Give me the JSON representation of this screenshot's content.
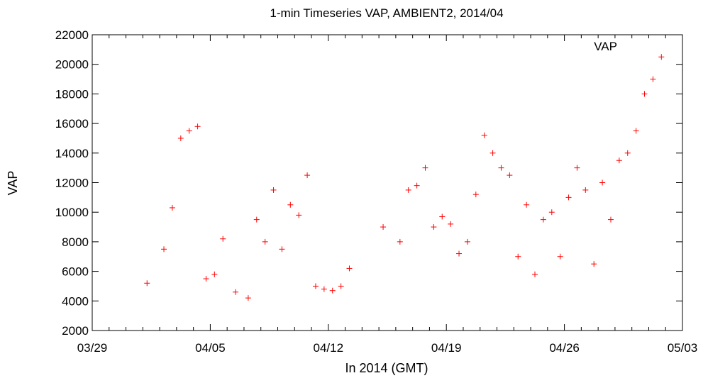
{
  "chart_data": {
    "type": "scatter",
    "title": "1-min Timeseries VAP, AMBIENT2, 2014/04",
    "xlabel": "In 2014 (GMT)",
    "ylabel": "VAP",
    "ylim": [
      2000,
      22000
    ],
    "xlim": [
      "2014-03-29",
      "2014-05-03"
    ],
    "x_ticks": [
      "03/29",
      "04/05",
      "04/12",
      "04/19",
      "04/26",
      "05/03"
    ],
    "y_ticks": [
      2000,
      4000,
      6000,
      8000,
      10000,
      12000,
      14000,
      16000,
      18000,
      20000,
      22000
    ],
    "grid": false,
    "legend_position": "top-right",
    "marker": "plus",
    "color": "#ff0000",
    "series": [
      {
        "name": "VAP",
        "x": [
          "2014-04-01 06:00",
          "2014-04-02 06:00",
          "2014-04-02 18:00",
          "2014-04-03 06:00",
          "2014-04-03 18:00",
          "2014-04-04 06:00",
          "2014-04-04 18:00",
          "2014-04-05 06:00",
          "2014-04-05 18:00",
          "2014-04-06 12:00",
          "2014-04-07 06:00",
          "2014-04-07 18:00",
          "2014-04-08 06:00",
          "2014-04-08 18:00",
          "2014-04-09 06:00",
          "2014-04-09 18:00",
          "2014-04-10 06:00",
          "2014-04-10 18:00",
          "2014-04-11 06:00",
          "2014-04-11 18:00",
          "2014-04-12 06:00",
          "2014-04-12 18:00",
          "2014-04-13 06:00",
          "2014-04-15 06:00",
          "2014-04-16 06:00",
          "2014-04-16 18:00",
          "2014-04-17 06:00",
          "2014-04-17 18:00",
          "2014-04-18 06:00",
          "2014-04-18 18:00",
          "2014-04-19 06:00",
          "2014-04-19 18:00",
          "2014-04-20 06:00",
          "2014-04-20 18:00",
          "2014-04-21 06:00",
          "2014-04-21 18:00",
          "2014-04-22 06:00",
          "2014-04-22 18:00",
          "2014-04-23 06:00",
          "2014-04-23 18:00",
          "2014-04-24 06:00",
          "2014-04-24 18:00",
          "2014-04-25 06:00",
          "2014-04-25 18:00",
          "2014-04-26 06:00",
          "2014-04-26 18:00",
          "2014-04-27 06:00",
          "2014-04-27 18:00",
          "2014-04-28 06:00",
          "2014-04-28 18:00",
          "2014-04-29 06:00",
          "2014-04-29 18:00",
          "2014-04-30 06:00",
          "2014-04-30 18:00",
          "2014-05-01 06:00",
          "2014-05-01 18:00"
        ],
        "values": [
          5200,
          7500,
          10300,
          15000,
          15500,
          15800,
          5500,
          5800,
          8200,
          4600,
          4200,
          9500,
          8000,
          11500,
          7500,
          10500,
          9800,
          12500,
          5000,
          4800,
          4700,
          5000,
          6200,
          9000,
          8000,
          11500,
          11800,
          13000,
          9000,
          9700,
          9200,
          7200,
          8000,
          11200,
          15200,
          14000,
          13000,
          12500,
          7000,
          10500,
          5800,
          9500,
          10000,
          7000,
          11000,
          13000,
          11500,
          6500,
          12000,
          9500,
          13500,
          14000,
          15500,
          18000,
          19000,
          20500
        ]
      }
    ]
  }
}
